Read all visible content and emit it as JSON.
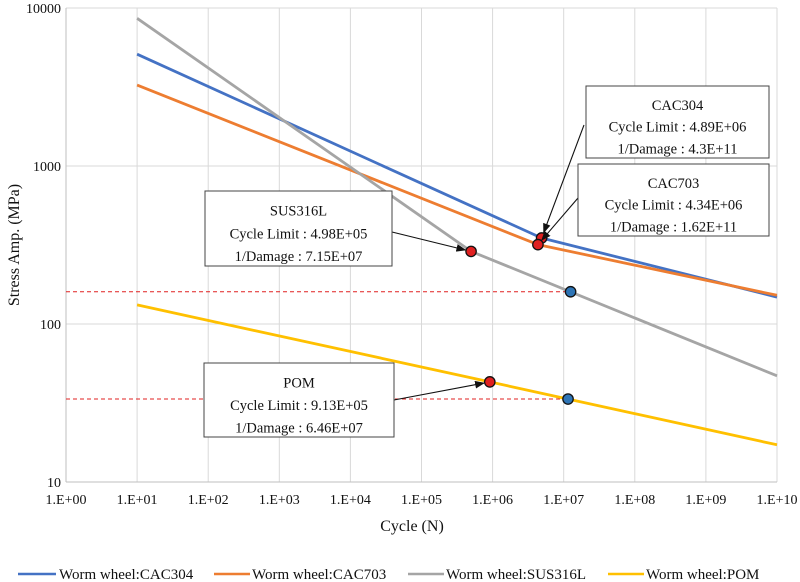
{
  "chart_data": {
    "type": "line",
    "scale": {
      "x": "log",
      "y": "log"
    },
    "xlabel": "Cycle (N)",
    "ylabel": "Stress  Amp. (MPa)",
    "xlim": [
      1,
      10000000000
    ],
    "ylim": [
      10,
      10000
    ],
    "x_ticks": [
      {
        "value": 1,
        "label": "1.E+00"
      },
      {
        "value": 10,
        "label": "1.E+01"
      },
      {
        "value": 100,
        "label": "1.E+02"
      },
      {
        "value": 1000,
        "label": "1.E+03"
      },
      {
        "value": 10000,
        "label": "1.E+04"
      },
      {
        "value": 100000,
        "label": "1.E+05"
      },
      {
        "value": 1000000,
        "label": "1.E+06"
      },
      {
        "value": 10000000,
        "label": "1.E+07"
      },
      {
        "value": 100000000,
        "label": "1.E+08"
      },
      {
        "value": 1000000000,
        "label": "1.E+09"
      },
      {
        "value": 10000000000,
        "label": "1.E+10"
      }
    ],
    "y_ticks": [
      {
        "value": 10,
        "label": "10"
      },
      {
        "value": 100,
        "label": "100"
      },
      {
        "value": 1000,
        "label": "1000"
      },
      {
        "value": 10000,
        "label": "10000"
      }
    ],
    "grid": true,
    "legend_position": "bottom",
    "series": [
      {
        "name": "Worm wheel:CAC304",
        "color": "#4472C4",
        "points": [
          [
            10,
            5100
          ],
          [
            4890000,
            350
          ],
          [
            10000000000,
            148
          ]
        ]
      },
      {
        "name": "Worm wheel:CAC703",
        "color": "#ED7D31",
        "points": [
          [
            10,
            3250
          ],
          [
            4340000,
            318
          ],
          [
            10000000000,
            152
          ]
        ]
      },
      {
        "name": "Worm wheel:SUS316L",
        "color": "#A5A5A5",
        "points": [
          [
            10,
            8600
          ],
          [
            498000,
            288
          ],
          [
            10000000000,
            47
          ]
        ]
      },
      {
        "name": "Worm wheel:POM",
        "color": "#FFC000",
        "points": [
          [
            10,
            132
          ],
          [
            913000,
            43
          ],
          [
            10000000000,
            17.2
          ]
        ]
      }
    ],
    "markers": [
      {
        "name": "cac304-cycle-limit",
        "x": 4890000,
        "y": 350,
        "color": "#E02020"
      },
      {
        "name": "cac703-cycle-limit",
        "x": 4340000,
        "y": 318,
        "color": "#E02020"
      },
      {
        "name": "sus316l-cycle-limit",
        "x": 498000,
        "y": 288,
        "color": "#E02020"
      },
      {
        "name": "pom-cycle-limit",
        "x": 913000,
        "y": 43,
        "color": "#E02020"
      },
      {
        "name": "sus316l-reference-point",
        "x": 12500000,
        "y": 160,
        "color": "#2E75B6"
      },
      {
        "name": "pom-reference-point",
        "x": 11500000,
        "y": 33.5,
        "color": "#2E75B6"
      }
    ],
    "reference_lines": [
      {
        "name": "sus316l-reference-line",
        "y": 160,
        "x_end": 12500000,
        "color": "#E02020"
      },
      {
        "name": "pom-reference-line",
        "y": 33.5,
        "x_end": 11500000,
        "color": "#E02020"
      }
    ],
    "annotations": [
      {
        "name": "cac304",
        "lines": [
          "CAC304",
          "Cycle Limit : 4.89E+06",
          "1/Damage : 4.3E+11"
        ],
        "target_marker": 0
      },
      {
        "name": "cac703",
        "lines": [
          "CAC703",
          "Cycle Limit : 4.34E+06",
          "1/Damage : 1.62E+11"
        ],
        "target_marker": 1
      },
      {
        "name": "sus316l",
        "lines": [
          "SUS316L",
          "Cycle Limit : 4.98E+05",
          "1/Damage : 7.15E+07"
        ],
        "target_marker": 2
      },
      {
        "name": "pom",
        "lines": [
          "POM",
          "Cycle Limit : 9.13E+05",
          "1/Damage : 6.46E+07"
        ],
        "target_marker": 3
      }
    ]
  }
}
